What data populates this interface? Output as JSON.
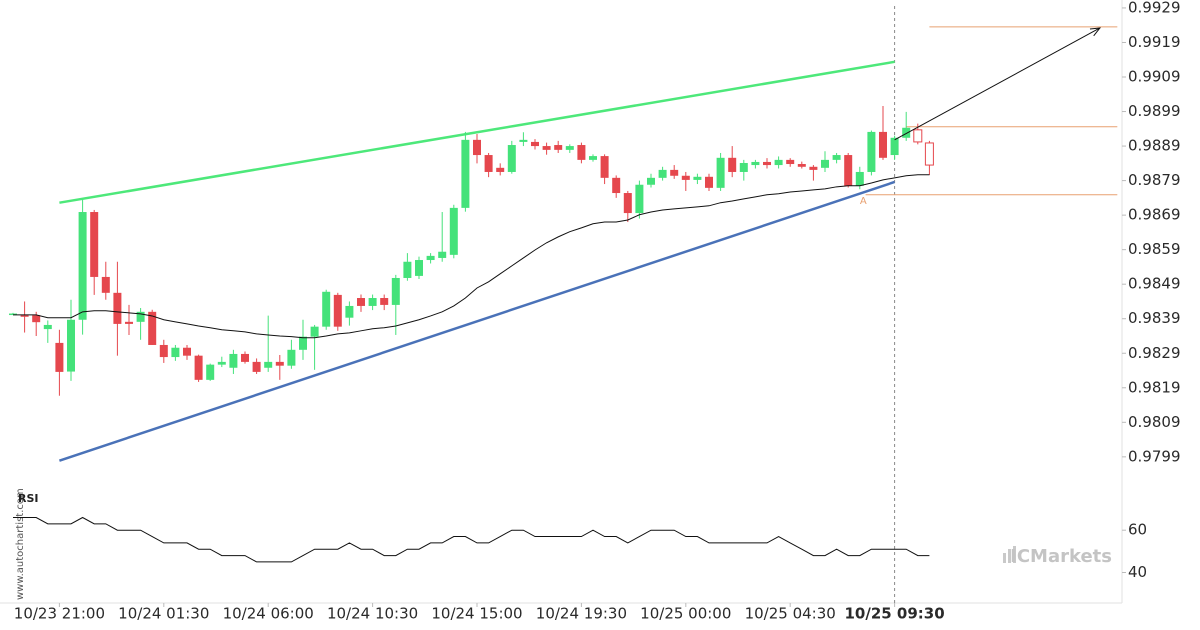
{
  "chart_data": {
    "type": "candlestick",
    "categories": [
      null,
      null,
      null,
      null,
      "10/23 21:00",
      null,
      null,
      null,
      null,
      null,
      null,
      null,
      null,
      "10/24 01:30",
      null,
      null,
      null,
      null,
      null,
      null,
      null,
      null,
      "10/24 06:00",
      null,
      null,
      null,
      null,
      null,
      null,
      null,
      null,
      "10/24 10:30",
      null,
      null,
      null,
      null,
      null,
      null,
      null,
      null,
      "10/24 15:00",
      null,
      null,
      null,
      null,
      null,
      null,
      null,
      null,
      "10/24 19:30",
      null,
      null,
      null,
      null,
      null,
      null,
      null,
      null,
      "10/25 00:00",
      null,
      null,
      null,
      null,
      null,
      null,
      null,
      null,
      "10/25 04:30",
      null,
      null,
      null,
      null,
      null,
      null,
      null,
      null,
      "10/25 09:30",
      null,
      null,
      null
    ],
    "current_index": 76,
    "forecast_from": 78,
    "up_color": "#44e27a",
    "down_color": "#e5474d",
    "open": [
      0.98405,
      0.984,
      0.984,
      0.9836,
      0.9832,
      0.98237,
      0.98387,
      0.98699,
      0.98511,
      0.98465,
      0.98381,
      0.98381,
      0.9841,
      0.98314,
      0.98279,
      0.98306,
      0.98283,
      0.98213,
      0.98257,
      0.98248,
      0.98288,
      0.98265,
      0.98248,
      0.98265,
      0.98254,
      0.983,
      0.98338,
      0.98367,
      0.98459,
      0.98393,
      0.9845,
      0.98427,
      0.9845,
      0.9843,
      0.98508,
      0.98514,
      0.9856,
      0.98566,
      0.98575,
      0.98711,
      0.98908,
      0.98864,
      0.98827,
      0.98815,
      0.98902,
      0.98902,
      0.9889,
      0.98893,
      0.98879,
      0.98893,
      0.9885,
      0.98861,
      0.98798,
      0.98754,
      0.98696,
      0.98778,
      0.98798,
      0.98821,
      0.98804,
      0.98792,
      0.98801,
      0.98769,
      0.98856,
      0.98815,
      0.98835,
      0.98844,
      0.98835,
      0.9885,
      0.98838,
      0.9883,
      0.98827,
      0.9885,
      0.98864,
      0.98775,
      0.98815,
      0.98931,
      0.98864,
      0.98914,
      0.98937,
      0.98899
    ],
    "high": [
      0.98407,
      0.9844,
      0.9841,
      0.98385,
      0.98358,
      0.98445,
      0.98734,
      0.98705,
      0.98555,
      0.98555,
      0.9843,
      0.98421,
      0.98416,
      0.98329,
      0.98314,
      0.98314,
      0.98286,
      0.9826,
      0.9828,
      0.983,
      0.98295,
      0.98275,
      0.98399,
      0.98285,
      0.98329,
      0.98387,
      0.98372,
      0.98474,
      0.98465,
      0.9844,
      0.9846,
      0.9846,
      0.9846,
      0.98517,
      0.9858,
      0.9857,
      0.9858,
      0.98699,
      0.9872,
      0.98931,
      0.98925,
      0.9887,
      0.9884,
      0.98905,
      0.9893,
      0.9891,
      0.989,
      0.98905,
      0.98895,
      0.989,
      0.98866,
      0.98866,
      0.98805,
      0.9876,
      0.9879,
      0.9881,
      0.9883,
      0.98835,
      0.98815,
      0.9881,
      0.9881,
      0.9887,
      0.9889,
      0.9885,
      0.9885,
      0.98855,
      0.9886,
      0.98855,
      0.98845,
      0.98835,
      0.98875,
      0.9887,
      0.9887,
      0.9883,
      0.98935,
      0.99006,
      0.9892,
      0.98989,
      0.98955,
      0.98905
    ],
    "low": [
      0.98403,
      0.9835,
      0.9834,
      0.9832,
      0.98167,
      0.9821,
      0.98344,
      0.98459,
      0.98445,
      0.98283,
      0.98343,
      0.98329,
      0.98314,
      0.98262,
      0.98268,
      0.98271,
      0.98207,
      0.9821,
      0.9825,
      0.9823,
      0.9826,
      0.9823,
      0.98236,
      0.98213,
      0.98245,
      0.98271,
      0.98242,
      0.98358,
      0.98355,
      0.9837,
      0.9841,
      0.98415,
      0.98415,
      0.98343,
      0.985,
      0.98505,
      0.9855,
      0.98555,
      0.98565,
      0.987,
      0.9884,
      0.988,
      0.98805,
      0.9881,
      0.9889,
      0.9888,
      0.98865,
      0.9887,
      0.9887,
      0.9884,
      0.98845,
      0.9878,
      0.9874,
      0.9867,
      0.9868,
      0.9877,
      0.9879,
      0.98795,
      0.9876,
      0.9878,
      0.9876,
      0.9876,
      0.988,
      0.9879,
      0.98825,
      0.98825,
      0.98825,
      0.9883,
      0.98825,
      0.9879,
      0.98815,
      0.9884,
      0.9877,
      0.98765,
      0.98805,
      0.9885,
      0.9885,
      0.98905,
      0.98895,
      0.98806
    ],
    "close": [
      0.98405,
      0.98398,
      0.9838,
      0.98372,
      0.98236,
      0.98387,
      0.98699,
      0.98511,
      0.98465,
      0.98375,
      0.98375,
      0.9841,
      0.98314,
      0.98279,
      0.98306,
      0.98283,
      0.98213,
      0.98257,
      0.98265,
      0.98288,
      0.98265,
      0.98236,
      0.98265,
      0.98254,
      0.983,
      0.98338,
      0.98367,
      0.98468,
      0.98367,
      0.98427,
      0.98427,
      0.9845,
      0.9843,
      0.98508,
      0.98555,
      0.9856,
      0.98572,
      0.98584,
      0.98711,
      0.98908,
      0.98864,
      0.98815,
      0.98815,
      0.98893,
      0.98908,
      0.9889,
      0.98879,
      0.98879,
      0.9889,
      0.9885,
      0.98861,
      0.98798,
      0.98754,
      0.98696,
      0.98778,
      0.98798,
      0.98821,
      0.98804,
      0.98792,
      0.98801,
      0.98769,
      0.98856,
      0.98815,
      0.98841,
      0.98844,
      0.98835,
      0.9885,
      0.98838,
      0.9883,
      0.98821,
      0.9885,
      0.98864,
      0.98775,
      0.98815,
      0.98931,
      0.98856,
      0.98914,
      0.98943,
      0.98902,
      0.98835
    ],
    "moving_average": {
      "color": "#111111",
      "values": [
        0.98401,
        0.98401,
        0.98401,
        0.98393,
        0.98393,
        0.98393,
        0.9841,
        0.98413,
        0.98413,
        0.9841,
        0.98407,
        0.98404,
        0.98398,
        0.98387,
        0.98381,
        0.98375,
        0.98369,
        0.98364,
        0.98358,
        0.98355,
        0.98352,
        0.98346,
        0.98343,
        0.9834,
        0.98338,
        0.98335,
        0.98335,
        0.9834,
        0.98346,
        0.98349,
        0.98355,
        0.98361,
        0.98364,
        0.98369,
        0.98378,
        0.98387,
        0.98398,
        0.9841,
        0.98427,
        0.9845,
        0.98479,
        0.98497,
        0.9852,
        0.98543,
        0.98566,
        0.98589,
        0.9861,
        0.98627,
        0.98642,
        0.98653,
        0.98665,
        0.9867,
        0.9867,
        0.98676,
        0.98691,
        0.98699,
        0.98705,
        0.98708,
        0.98711,
        0.98714,
        0.98717,
        0.98726,
        0.98731,
        0.98737,
        0.98743,
        0.98749,
        0.98752,
        0.98757,
        0.9876,
        0.98763,
        0.98766,
        0.98772,
        0.98775,
        0.98775,
        0.98783,
        0.98792,
        0.98798,
        0.98804,
        0.98807,
        0.98807
      ]
    },
    "ylim": [
      0.97894,
      0.99313
    ],
    "yticks": [
      0.9929,
      0.9919,
      0.9909,
      0.9899,
      0.9889,
      0.9879,
      0.9869,
      0.9859,
      0.9849,
      0.9839,
      0.9829,
      0.9819,
      0.9809,
      0.9799
    ],
    "trendlines": [
      {
        "color": "#4de87a",
        "x": [
          4,
          76
        ],
        "y": [
          0.98726,
          0.99134
        ]
      },
      {
        "color": "#4a72b8",
        "x": [
          4,
          76
        ],
        "y": [
          0.97979,
          0.98786
        ]
      }
    ],
    "levels": [
      {
        "color": "#e8a070",
        "value": 0.99235,
        "x": [
          79,
          95.2
        ]
      },
      {
        "color": "#e8a070",
        "value": 0.98946,
        "x": [
          77,
          95.2
        ]
      },
      {
        "color": "#e8a070",
        "value": 0.98749,
        "x": [
          73.5,
          95.2
        ]
      }
    ],
    "arrow": {
      "color": "#111111",
      "x": [
        76,
        93.7
      ],
      "y": [
        0.98908,
        0.99232
      ]
    },
    "annotation": {
      "text": "A",
      "color": "#e8a070",
      "x": 73.3,
      "y": 0.98731
    },
    "rsi": {
      "label": "RSI",
      "color": "#111111",
      "ylim": [
        27,
        79
      ],
      "yticks": [
        40,
        60
      ],
      "values": [
        66,
        66,
        66,
        63,
        63,
        63,
        66,
        63,
        63,
        60,
        60,
        60,
        57,
        54,
        54,
        54,
        51,
        51,
        48,
        48,
        48,
        45,
        45,
        45,
        45,
        48,
        51,
        51,
        51,
        54,
        51,
        51,
        48,
        48,
        51,
        51,
        54,
        54,
        57,
        57,
        54,
        54,
        57,
        60,
        60,
        57,
        57,
        57,
        57,
        57,
        60,
        57,
        57,
        54,
        57,
        60,
        60,
        60,
        57,
        57,
        54,
        54,
        54,
        54,
        54,
        54,
        57,
        54,
        51,
        48,
        48,
        51,
        48,
        48,
        51,
        51,
        51,
        51,
        48,
        48
      ]
    },
    "watermark": "www.autochartist.com",
    "brand": "ICMarkets"
  }
}
